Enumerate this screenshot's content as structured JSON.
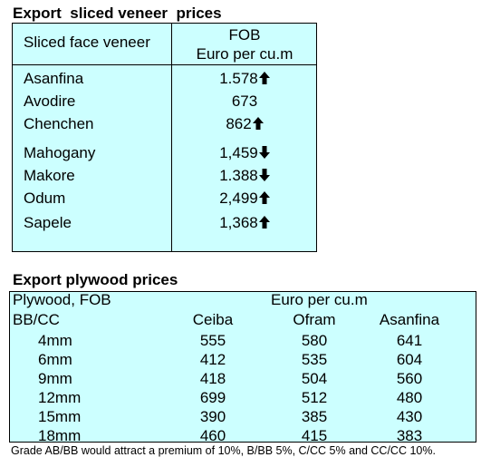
{
  "veneer": {
    "title": "Export  sliced veneer  prices",
    "header_left": "Sliced face veneer",
    "header_right_1": "FOB",
    "header_right_2": "Euro per cu.m",
    "rows": [
      {
        "name": "Asanfina",
        "price": "1.578",
        "trend": "up"
      },
      {
        "name": "Avodire",
        "price": "673",
        "trend": "none"
      },
      {
        "name": "Chenchen",
        "price": "862",
        "trend": "up"
      },
      {
        "name": "Mahogany",
        "price": "1,459",
        "trend": "down"
      },
      {
        "name": "Makore",
        "price": "1.388",
        "trend": "down"
      },
      {
        "name": "Odum",
        "price": "2,499",
        "trend": "up"
      },
      {
        "name": "Sapele",
        "price": "1,368",
        "trend": "up"
      }
    ]
  },
  "plywood": {
    "title": "Export plywood prices",
    "header_row1_left": "Plywood, FOB",
    "header_row1_right": "Euro per cu.m",
    "header_row2_left": "BB/CC",
    "columns": [
      "Ceiba",
      "Ofram",
      "Asanfina"
    ],
    "rows": [
      {
        "size": "4mm",
        "values": [
          "555",
          "580",
          "641"
        ]
      },
      {
        "size": "6mm",
        "values": [
          "412",
          "535",
          "604"
        ]
      },
      {
        "size": "9mm",
        "values": [
          "418",
          "504",
          "560"
        ]
      },
      {
        "size": "12mm",
        "values": [
          "699",
          "512",
          "480"
        ]
      },
      {
        "size": "15mm",
        "values": [
          "390",
          "385",
          "430"
        ]
      },
      {
        "size": "18mm",
        "values": [
          "460",
          "415",
          "383"
        ]
      }
    ]
  },
  "note": "Grade AB/BB would attract a premium of 10%, B/BB 5%, C/CC 5% and CC/CC 10%."
}
